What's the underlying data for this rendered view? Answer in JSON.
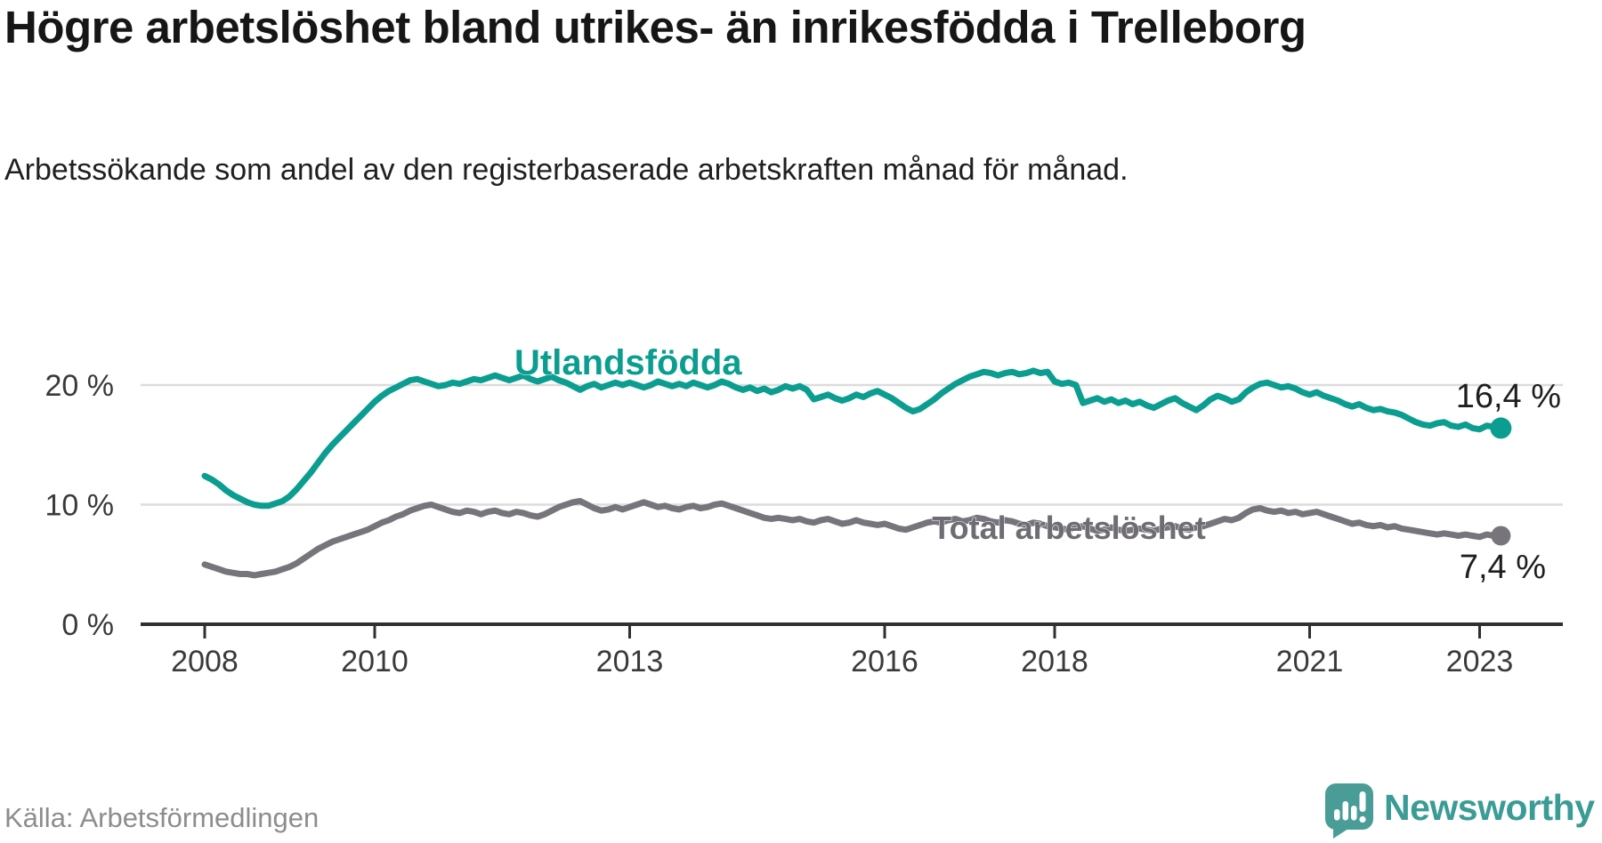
{
  "title": "Högre arbetslöshet bland utrikes- än inrikesfödda i Trelleborg",
  "subtitle": "Arbetssökande som andel av den registerbaserade arbetskraften månad för månad.",
  "source": "Källa: Arbetsförmedlingen",
  "brand": {
    "name": "Newsworthy",
    "logo_icon": "speech-bubble-bar-chart-exclamation",
    "logo_color": "#4a9d97",
    "text_color": "#3a9c95"
  },
  "colors": {
    "foreign_born_line": "#0b9e90",
    "total_line": "#77757b",
    "total_label": "#6f6d73",
    "grid": "#dcdcdc",
    "axis": "#303030",
    "axis_text": "#3a3a3a"
  },
  "chart_data": {
    "type": "line",
    "unit": "%",
    "x_start_year": 2008,
    "x_end_label_period": "2023",
    "points_per_year": 12,
    "grid": "horizontal-only",
    "ylim": [
      0,
      24
    ],
    "y_ticks": [
      {
        "value": 0,
        "label": "0 %"
      },
      {
        "value": 10,
        "label": "10 %"
      },
      {
        "value": 20,
        "label": "20 %"
      }
    ],
    "x_ticks": [
      {
        "value": 2008,
        "label": "2008"
      },
      {
        "value": 2010,
        "label": "2010"
      },
      {
        "value": 2013,
        "label": "2013"
      },
      {
        "value": 2016,
        "label": "2016"
      },
      {
        "value": 2018,
        "label": "2018"
      },
      {
        "value": 2021,
        "label": "2021"
      },
      {
        "value": 2023,
        "label": "2023"
      }
    ],
    "series": [
      {
        "name": "Utlandsfödda",
        "color": "#0b9e90",
        "end_label": "16,4 %",
        "end_value": 16.4,
        "values": [
          12.4,
          12.1,
          11.7,
          11.2,
          10.8,
          10.5,
          10.2,
          10.0,
          9.9,
          9.9,
          10.1,
          10.3,
          10.7,
          11.3,
          12.0,
          12.7,
          13.5,
          14.3,
          15.0,
          15.6,
          16.2,
          16.8,
          17.4,
          18.0,
          18.6,
          19.1,
          19.5,
          19.8,
          20.1,
          20.4,
          20.5,
          20.3,
          20.1,
          19.9,
          20.0,
          20.2,
          20.1,
          20.3,
          20.5,
          20.4,
          20.6,
          20.8,
          20.6,
          20.4,
          20.6,
          20.8,
          20.5,
          20.3,
          20.5,
          20.7,
          20.4,
          20.2,
          19.9,
          19.6,
          19.9,
          20.1,
          19.8,
          20.0,
          20.2,
          20.0,
          20.2,
          20.0,
          19.8,
          20.0,
          20.3,
          20.1,
          19.9,
          20.1,
          19.9,
          20.2,
          20.0,
          19.8,
          20.0,
          20.3,
          20.1,
          19.8,
          19.6,
          19.8,
          19.5,
          19.7,
          19.4,
          19.6,
          19.9,
          19.7,
          19.9,
          19.6,
          18.8,
          19.0,
          19.2,
          18.9,
          18.7,
          18.9,
          19.2,
          19.0,
          19.3,
          19.5,
          19.2,
          18.9,
          18.5,
          18.1,
          17.8,
          18.0,
          18.4,
          18.8,
          19.3,
          19.7,
          20.1,
          20.4,
          20.7,
          20.9,
          21.1,
          21.0,
          20.8,
          21.0,
          21.1,
          20.9,
          21.0,
          21.2,
          21.0,
          21.1,
          20.3,
          20.1,
          20.2,
          20.0,
          18.5,
          18.7,
          18.9,
          18.6,
          18.8,
          18.5,
          18.7,
          18.4,
          18.6,
          18.3,
          18.1,
          18.4,
          18.7,
          18.9,
          18.5,
          18.2,
          17.9,
          18.3,
          18.8,
          19.1,
          18.9,
          18.6,
          18.8,
          19.4,
          19.8,
          20.1,
          20.2,
          20.0,
          19.8,
          19.9,
          19.7,
          19.4,
          19.2,
          19.4,
          19.1,
          18.9,
          18.7,
          18.4,
          18.2,
          18.4,
          18.1,
          17.9,
          18.0,
          17.8,
          17.7,
          17.5,
          17.2,
          16.9,
          16.7,
          16.6,
          16.8,
          16.9,
          16.6,
          16.5,
          16.7,
          16.4,
          16.3,
          16.6,
          16.5,
          16.4
        ]
      },
      {
        "name": "Total arbetslöshet",
        "color": "#77757b",
        "end_label": "7,4 %",
        "end_value": 7.4,
        "values": [
          5.0,
          4.8,
          4.6,
          4.4,
          4.3,
          4.2,
          4.2,
          4.1,
          4.2,
          4.3,
          4.4,
          4.6,
          4.8,
          5.1,
          5.5,
          5.9,
          6.3,
          6.6,
          6.9,
          7.1,
          7.3,
          7.5,
          7.7,
          7.9,
          8.2,
          8.5,
          8.7,
          9.0,
          9.2,
          9.5,
          9.7,
          9.9,
          10.0,
          9.8,
          9.6,
          9.4,
          9.3,
          9.5,
          9.4,
          9.2,
          9.4,
          9.5,
          9.3,
          9.2,
          9.4,
          9.3,
          9.1,
          9.0,
          9.2,
          9.5,
          9.8,
          10.0,
          10.2,
          10.3,
          10.0,
          9.7,
          9.5,
          9.6,
          9.8,
          9.6,
          9.8,
          10.0,
          10.2,
          10.0,
          9.8,
          9.9,
          9.7,
          9.6,
          9.8,
          9.9,
          9.7,
          9.8,
          10.0,
          10.1,
          9.9,
          9.7,
          9.5,
          9.3,
          9.1,
          8.9,
          8.8,
          8.9,
          8.8,
          8.7,
          8.8,
          8.6,
          8.5,
          8.7,
          8.8,
          8.6,
          8.4,
          8.5,
          8.7,
          8.5,
          8.4,
          8.3,
          8.4,
          8.2,
          8.0,
          7.9,
          8.1,
          8.3,
          8.5,
          8.6,
          8.5,
          8.7,
          8.8,
          8.6,
          8.7,
          8.9,
          8.8,
          8.6,
          8.5,
          8.7,
          8.6,
          8.4,
          8.3,
          8.5,
          8.4,
          8.2,
          8.1,
          8.0,
          7.9,
          8.1,
          8.2,
          8.0,
          7.8,
          7.9,
          8.1,
          7.9,
          7.8,
          7.9,
          8.0,
          7.9,
          7.8,
          8.0,
          8.1,
          8.2,
          8.0,
          7.9,
          8.1,
          8.2,
          8.4,
          8.6,
          8.8,
          8.7,
          8.9,
          9.3,
          9.6,
          9.7,
          9.5,
          9.4,
          9.5,
          9.3,
          9.4,
          9.2,
          9.3,
          9.4,
          9.2,
          9.0,
          8.8,
          8.6,
          8.4,
          8.5,
          8.3,
          8.2,
          8.3,
          8.1,
          8.2,
          8.0,
          7.9,
          7.8,
          7.7,
          7.6,
          7.5,
          7.6,
          7.5,
          7.4,
          7.5,
          7.4,
          7.3,
          7.5,
          7.4,
          7.4
        ]
      }
    ]
  }
}
